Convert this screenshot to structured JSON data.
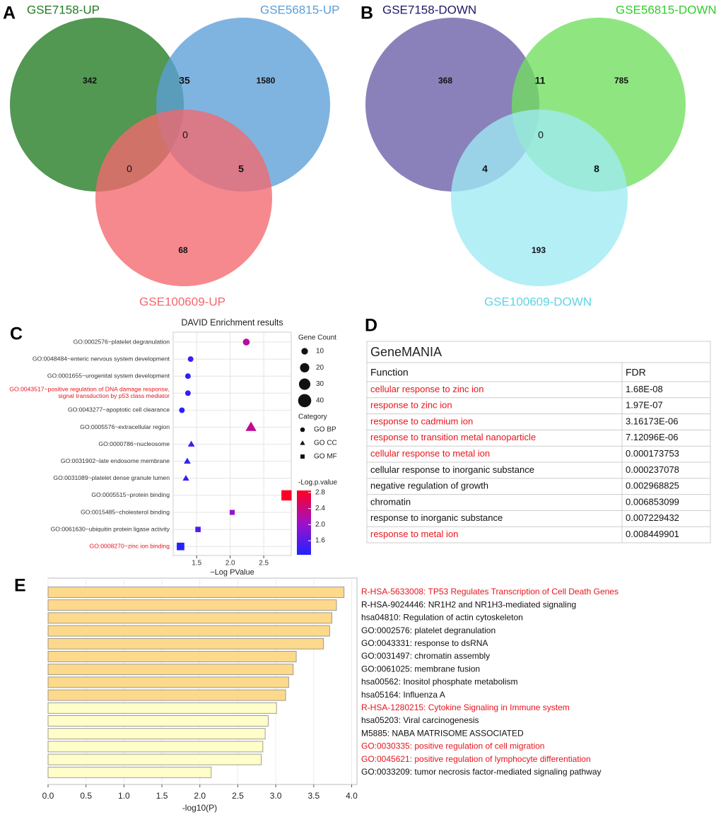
{
  "chart_data": [
    {
      "type": "venn",
      "panel": "A",
      "sets": [
        {
          "name": "GSE7158-UP",
          "color": "#217a21"
        },
        {
          "name": "GSE56815-UP",
          "color": "#5b9fd8"
        },
        {
          "name": "GSE100609-UP",
          "color": "#f4686d"
        }
      ],
      "values": [
        342,
        1580,
        68,
        35,
        0,
        5,
        0
      ]
    },
    {
      "type": "venn",
      "panel": "B",
      "sets": [
        {
          "name": "GSE7158-DOWN",
          "color": "#6a5ea6"
        },
        {
          "name": "GSE56815-DOWN",
          "color": "#6fdf5e"
        },
        {
          "name": "GSE100609-DOWN",
          "color": "#9feaf4"
        }
      ],
      "set_label_colors": [
        "#1c1a66",
        "#33cc2e",
        "#5fd4e4"
      ],
      "values": [
        368,
        785,
        193,
        11,
        4,
        8,
        0
      ]
    },
    {
      "type": "bubble",
      "panel": "C",
      "title": "DAVID Enrichment results",
      "categories": [
        "GO:0002576~platelet degranulation",
        "GO:0048484~enteric nervous system development",
        "GO:0001655~urogenital system development",
        "GO:0043517~positive regulation of DNA damage response,\nsignal transduction by p53 class mediator",
        "GO:0043277~apoptotic cell clearance",
        "GO:0005576~extracellular region",
        "GO:0000786~nucleosome",
        "GO:0031902~late endosome membrane",
        "GO:0031089~platelet dense granule lumen",
        "GO:0005515~protein binding",
        "GO:0015485~cholesterol binding",
        "GO:0061630~ubiquitin protein ligase activity",
        "GO:0008270~zinc ion binding"
      ],
      "label_colors": [
        "#333333",
        "#333333",
        "#333333",
        "#e8141c",
        "#333333",
        "#333333",
        "#333333",
        "#333333",
        "#333333",
        "#333333",
        "#333333",
        "#333333",
        "#e8141c"
      ],
      "values": [
        2.24,
        1.41,
        1.37,
        1.37,
        1.28,
        2.31,
        1.42,
        1.36,
        1.34,
        2.84,
        2.03,
        1.52,
        1.26
      ],
      "sizes": [
        12,
        8,
        8,
        8,
        8,
        25,
        10,
        10,
        9,
        33,
        8,
        9,
        18
      ],
      "groups": [
        "GO BP",
        "GO BP",
        "GO BP",
        "GO BP",
        "GO BP",
        "GO CC",
        "GO CC",
        "GO CC",
        "GO CC",
        "GO MF",
        "GO MF",
        "GO MF",
        "GO MF"
      ],
      "xlim": [
        1.15,
        2.91
      ],
      "xticks": [
        1.5,
        {
          "value": 2,
          "label": "2.0"
        },
        2.5
      ],
      "xlabel": "−Log PValue",
      "grid": true,
      "size_legend": {
        "title": "Gene Count",
        "values": [
          10,
          20,
          30,
          40
        ]
      },
      "group_legend": {
        "title": "Category",
        "names": [
          "GO BP",
          "GO CC",
          "GO MF"
        ]
      },
      "color_legend": {
        "title": "-Log.p.value",
        "clim": [
          1.25,
          2.85
        ],
        "ticks": [
          2.8,
          2.4,
          {
            "value": 2,
            "label": "2.0"
          },
          1.6
        ],
        "colors": [
          "#2222ff",
          "#a010c8",
          "#ff0020"
        ]
      }
    },
    {
      "type": "table",
      "panel": "D",
      "title": "GeneMANIA",
      "columns": [
        "Function",
        "FDR"
      ],
      "rows": [
        [
          "cellular response to zinc ion",
          "1.68E-08"
        ],
        [
          "response to zinc ion",
          "1.97E-07"
        ],
        [
          "response to cadmium ion",
          "3.16173E-06"
        ],
        [
          "response to transition metal nanoparticle",
          "7.12096E-06"
        ],
        [
          "cellular response to metal ion",
          "0.000173753"
        ],
        [
          "cellular response to inorganic substance",
          "0.000237078"
        ],
        [
          "negative regulation of growth",
          "0.002968825"
        ],
        [
          "chromatin",
          "0.006853099"
        ],
        [
          "response to inorganic substance",
          "0.007229432"
        ],
        [
          "response to metal ion",
          "0.008449901"
        ]
      ],
      "row_colors": [
        "#e8141c",
        "#e8141c",
        "#e8141c",
        "#e8141c",
        "#e8141c",
        "#111111",
        "#111111",
        "#111111",
        "#111111",
        "#e8141c"
      ]
    },
    {
      "type": "barh",
      "panel": "E",
      "categories": [
        "R-HSA-5633008: TP53 Regulates Transcription of Cell Death Genes",
        "R-HSA-9024446: NR1H2 and NR1H3-mediated signaling",
        "hsa04810: Regulation of actin cytoskeleton",
        "GO:0002576: platelet degranulation",
        "GO:0043331: response to dsRNA",
        "GO:0031497: chromatin assembly",
        "GO:0061025: membrane fusion",
        "hsa00562: Inositol phosphate metabolism",
        "hsa05164: Influenza A",
        "R-HSA-1280215: Cytokine Signaling in Immune system",
        "hsa05203: Viral carcinogenesis",
        "M5885: NABA MATRISOME ASSOCIATED",
        "GO:0030335: positive regulation of cell migration",
        "GO:0045621: positive regulation of lymphocyte differentiation",
        "GO:0033209: tumor necrosis factor-mediated signaling pathway"
      ],
      "values": [
        3.9,
        3.8,
        3.74,
        3.71,
        3.63,
        3.27,
        3.23,
        3.17,
        3.13,
        3.01,
        2.9,
        2.86,
        2.83,
        2.81,
        2.15
      ],
      "colors": [
        "#fcd98b",
        "#fcd98b",
        "#fcd98b",
        "#fcd98b",
        "#fcd98b",
        "#fcd98b",
        "#fcd98b",
        "#fcd98b",
        "#fcd98b",
        "#fffdc9",
        "#fffdc9",
        "#fffdc9",
        "#fffdc9",
        "#fffdc9",
        "#fffdc9"
      ],
      "label_colors": [
        "#e8141c",
        "#111111",
        "#111111",
        "#111111",
        "#111111",
        "#111111",
        "#111111",
        "#111111",
        "#111111",
        "#e8141c",
        "#111111",
        "#111111",
        "#e8141c",
        "#e8141c",
        "#111111"
      ],
      "xlim": [
        0,
        4.07
      ],
      "xticks": [
        {
          "value": 0,
          "label": "0.0"
        },
        0.5,
        {
          "value": 1,
          "label": "1.0"
        },
        1.5,
        {
          "value": 2,
          "label": "2.0"
        },
        2.5,
        {
          "value": 3,
          "label": "3.0"
        },
        3.5,
        {
          "value": 4,
          "label": "4.0"
        }
      ],
      "xlabel": "-log10(P)",
      "grid": true
    }
  ]
}
